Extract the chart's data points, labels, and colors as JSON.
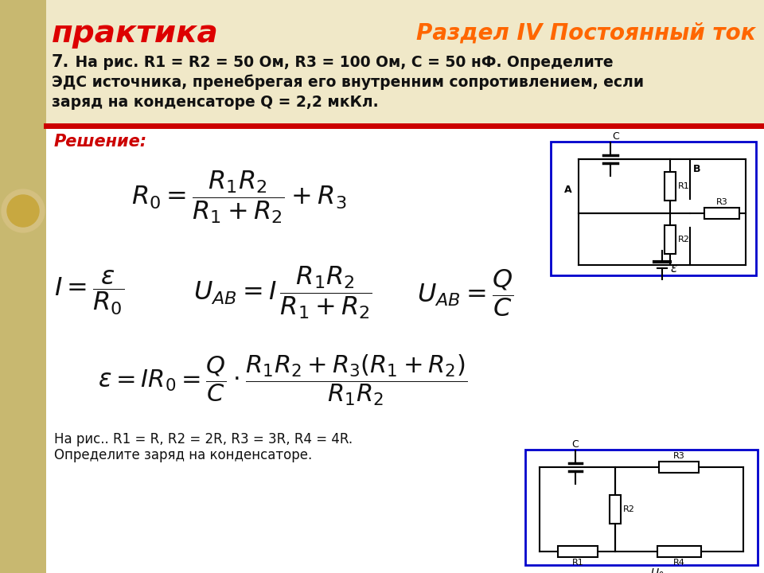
{
  "bg_top_color": "#f0e8c8",
  "bg_main_color": "#ffffff",
  "left_strip_color": "#c8b870",
  "title_left": "практика",
  "title_left_color": "#dd0000",
  "title_right": "Раздел IV Постоянный ток",
  "title_right_color": "#ff6600",
  "red_line_color": "#cc0000",
  "problem_num": "7.",
  "problem_line1": " На рис. R1 = R2 = 50 Ом, R3 = 100 Ом, С = 50 нФ. Определите",
  "problem_line2": "ЭДС источника, пренебрегая его внутренним сопротивлением, если",
  "problem_line3": "заряд на конденсаторе Q = 2,2 мкКл.",
  "solution_label": "Решение:",
  "solution_color": "#cc0000",
  "bottom_text_line1": "На рис.. R1 = R, R2 = 2R, R3 = 3R, R4 = 4R.",
  "bottom_text_line2": "Определите заряд на конденсаторе.",
  "text_color": "#111111"
}
